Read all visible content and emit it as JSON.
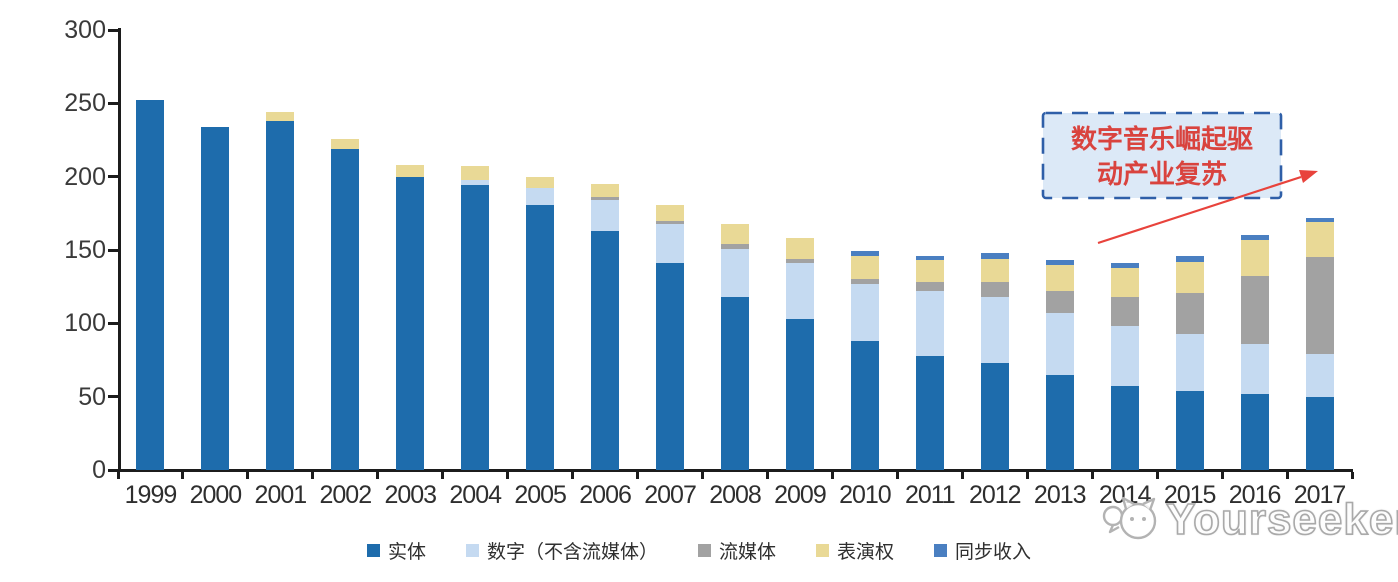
{
  "chart_data": {
    "type": "bar",
    "stacked": true,
    "title": "",
    "categories": [
      "1999",
      "2000",
      "2001",
      "2002",
      "2003",
      "2004",
      "2005",
      "2006",
      "2007",
      "2008",
      "2009",
      "2010",
      "2011",
      "2012",
      "2013",
      "2014",
      "2015",
      "2016",
      "2017"
    ],
    "series": [
      {
        "name": "实体",
        "color": "#1e6cac",
        "values": [
          252,
          234,
          238,
          219,
          200,
          194,
          181,
          163,
          141,
          118,
          103,
          88,
          78,
          73,
          65,
          57,
          54,
          52,
          50
        ]
      },
      {
        "name": "数字（不含流媒体）",
        "color": "#c5daf1",
        "values": [
          0,
          0,
          0,
          0,
          0,
          4,
          11,
          21,
          27,
          33,
          38,
          39,
          44,
          45,
          42,
          41,
          39,
          34,
          29
        ]
      },
      {
        "name": "流媒体",
        "color": "#a2a2a2",
        "values": [
          0,
          0,
          0,
          0,
          0,
          0,
          0,
          2,
          2,
          3,
          3,
          3,
          6,
          10,
          15,
          20,
          28,
          46,
          66
        ]
      },
      {
        "name": "表演权",
        "color": "#e9d996",
        "values": [
          0,
          0,
          6,
          7,
          8,
          9,
          8,
          9,
          11,
          14,
          14,
          16,
          15,
          16,
          18,
          20,
          21,
          25,
          24
        ]
      },
      {
        "name": "同步收入",
        "color": "#4a7fc1",
        "values": [
          0,
          0,
          0,
          0,
          0,
          0,
          0,
          0,
          0,
          0,
          0,
          3,
          3,
          4,
          3,
          3,
          4,
          3,
          3
        ]
      }
    ],
    "ylim": [
      0,
      300
    ],
    "yticks": [
      0,
      50,
      100,
      150,
      200,
      250,
      300
    ],
    "xlabel": "",
    "ylabel": "",
    "grid": false,
    "legend_position": "bottom"
  },
  "annotation": {
    "line1": "数字音乐崛起驱",
    "line2": "动产业复苏",
    "text_color": "#d9433e",
    "box_fill": "#dce9f7",
    "box_border": "#2f5fa8",
    "arrow_color": "#e8433c"
  },
  "watermark": {
    "brand": "Yourseeker"
  }
}
